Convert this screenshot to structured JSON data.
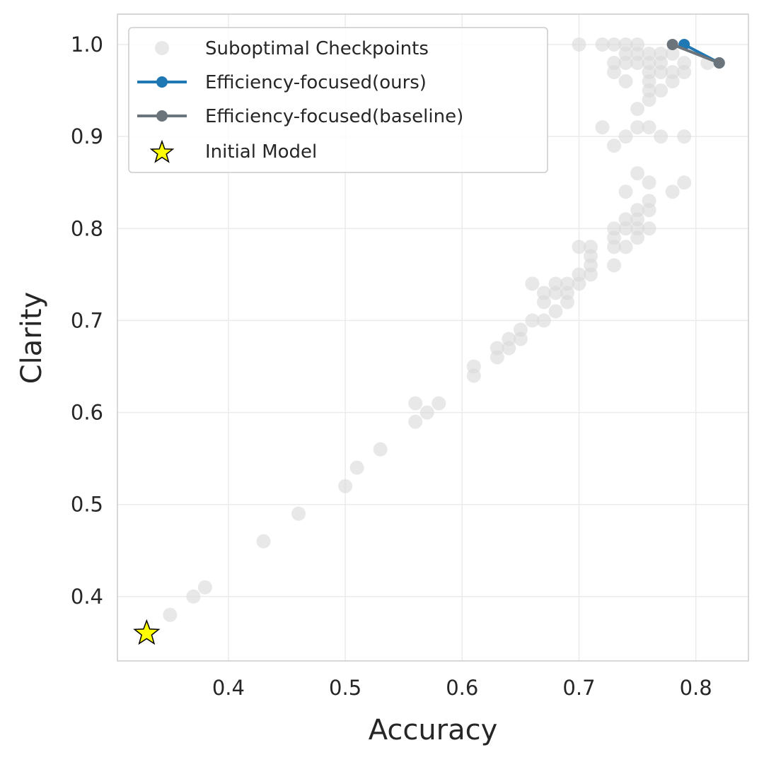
{
  "chart_data": {
    "type": "scatter",
    "xlabel": "Accuracy",
    "ylabel": "Clarity",
    "xlim": [
      0.305,
      0.845
    ],
    "ylim": [
      0.33,
      1.033
    ],
    "xticks": [
      0.4,
      0.5,
      0.6,
      0.7,
      0.8
    ],
    "yticks": [
      0.4,
      0.5,
      0.6,
      0.7,
      0.8,
      0.9,
      1.0
    ],
    "xtick_labels": [
      "0.4",
      "0.5",
      "0.6",
      "0.7",
      "0.8"
    ],
    "ytick_labels": [
      "0.4",
      "0.5",
      "0.6",
      "0.7",
      "0.8",
      "0.9",
      "1.0"
    ],
    "grid": true,
    "legend_position": "top-left",
    "legend": [
      "Suboptimal Checkpoints",
      "Efficiency-focused(ours)",
      "Efficiency-focused(baseline)",
      "Initial Model"
    ],
    "colors": {
      "suboptimal": "#d9d9d9",
      "ours": "#1f77b4",
      "baseline": "#6b737b",
      "initial": "#ffff00",
      "grid": "#ebebeb",
      "spine": "#cccccc"
    },
    "series": [
      {
        "name": "Suboptimal Checkpoints",
        "type": "scatter",
        "points": [
          [
            0.35,
            0.38
          ],
          [
            0.37,
            0.4
          ],
          [
            0.38,
            0.41
          ],
          [
            0.43,
            0.46
          ],
          [
            0.46,
            0.49
          ],
          [
            0.5,
            0.52
          ],
          [
            0.51,
            0.54
          ],
          [
            0.53,
            0.56
          ],
          [
            0.56,
            0.59
          ],
          [
            0.56,
            0.61
          ],
          [
            0.57,
            0.6
          ],
          [
            0.58,
            0.61
          ],
          [
            0.61,
            0.64
          ],
          [
            0.61,
            0.65
          ],
          [
            0.63,
            0.66
          ],
          [
            0.63,
            0.67
          ],
          [
            0.64,
            0.67
          ],
          [
            0.64,
            0.68
          ],
          [
            0.65,
            0.68
          ],
          [
            0.65,
            0.69
          ],
          [
            0.66,
            0.7
          ],
          [
            0.66,
            0.74
          ],
          [
            0.67,
            0.7
          ],
          [
            0.67,
            0.72
          ],
          [
            0.67,
            0.73
          ],
          [
            0.68,
            0.71
          ],
          [
            0.68,
            0.73
          ],
          [
            0.68,
            0.74
          ],
          [
            0.69,
            0.72
          ],
          [
            0.69,
            0.73
          ],
          [
            0.69,
            0.74
          ],
          [
            0.7,
            0.74
          ],
          [
            0.7,
            0.75
          ],
          [
            0.7,
            0.78
          ],
          [
            0.71,
            0.75
          ],
          [
            0.71,
            0.76
          ],
          [
            0.71,
            0.77
          ],
          [
            0.71,
            0.78
          ],
          [
            0.73,
            0.76
          ],
          [
            0.73,
            0.78
          ],
          [
            0.73,
            0.79
          ],
          [
            0.73,
            0.8
          ],
          [
            0.74,
            0.78
          ],
          [
            0.74,
            0.8
          ],
          [
            0.74,
            0.81
          ],
          [
            0.74,
            0.84
          ],
          [
            0.75,
            0.79
          ],
          [
            0.75,
            0.8
          ],
          [
            0.75,
            0.81
          ],
          [
            0.75,
            0.82
          ],
          [
            0.75,
            0.86
          ],
          [
            0.76,
            0.8
          ],
          [
            0.76,
            0.82
          ],
          [
            0.76,
            0.83
          ],
          [
            0.76,
            0.85
          ],
          [
            0.78,
            0.84
          ],
          [
            0.79,
            0.85
          ],
          [
            0.72,
            0.91
          ],
          [
            0.73,
            0.89
          ],
          [
            0.74,
            0.9
          ],
          [
            0.75,
            0.91
          ],
          [
            0.75,
            0.93
          ],
          [
            0.76,
            0.91
          ],
          [
            0.77,
            0.9
          ],
          [
            0.79,
            0.9
          ],
          [
            0.7,
            1.0
          ],
          [
            0.72,
            1.0
          ],
          [
            0.73,
            0.97
          ],
          [
            0.73,
            0.98
          ],
          [
            0.73,
            1.0
          ],
          [
            0.74,
            0.96
          ],
          [
            0.74,
            0.98
          ],
          [
            0.74,
            0.99
          ],
          [
            0.74,
            1.0
          ],
          [
            0.75,
            0.98
          ],
          [
            0.75,
            0.99
          ],
          [
            0.75,
            1.0
          ],
          [
            0.76,
            0.94
          ],
          [
            0.76,
            0.95
          ],
          [
            0.76,
            0.96
          ],
          [
            0.76,
            0.97
          ],
          [
            0.76,
            0.98
          ],
          [
            0.76,
            0.99
          ],
          [
            0.77,
            0.95
          ],
          [
            0.77,
            0.97
          ],
          [
            0.77,
            0.98
          ],
          [
            0.77,
            0.99
          ],
          [
            0.78,
            0.96
          ],
          [
            0.78,
            0.97
          ],
          [
            0.78,
            0.99
          ],
          [
            0.79,
            0.97
          ],
          [
            0.79,
            0.98
          ],
          [
            0.81,
            0.98
          ]
        ]
      },
      {
        "name": "Efficiency-focused(ours)",
        "type": "line",
        "points": [
          [
            0.79,
            1.0
          ],
          [
            0.82,
            0.98
          ]
        ]
      },
      {
        "name": "Efficiency-focused(baseline)",
        "type": "line",
        "points": [
          [
            0.78,
            1.0
          ],
          [
            0.82,
            0.98
          ]
        ]
      },
      {
        "name": "Initial Model",
        "type": "star",
        "points": [
          [
            0.33,
            0.36
          ]
        ]
      }
    ]
  }
}
